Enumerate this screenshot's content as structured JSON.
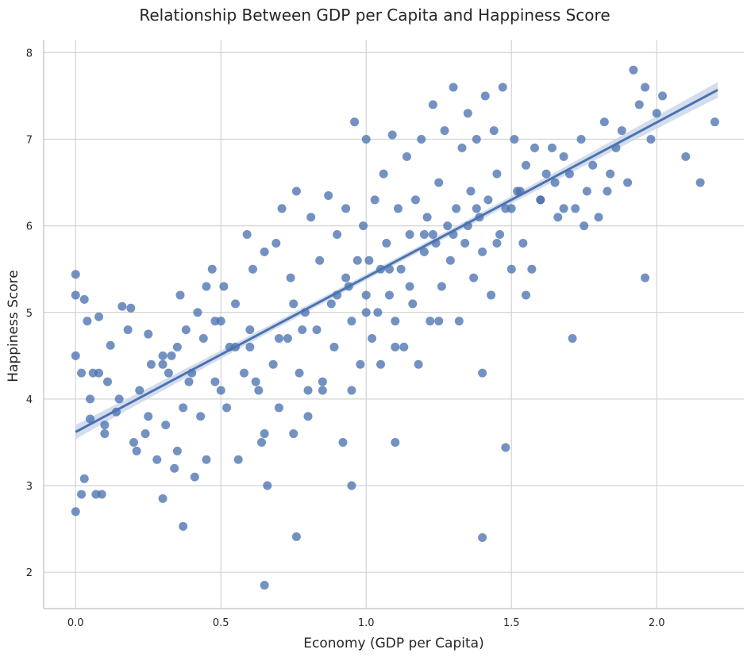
{
  "chart_data": {
    "type": "scatter",
    "title": "Relationship Between GDP per Capita and Happiness Score",
    "xlabel": "Economy (GDP per Capita)",
    "ylabel": "Happiness Score",
    "xlim": [
      -0.11,
      2.3
    ],
    "ylim": [
      1.58,
      8.15
    ],
    "xticks": [
      0.0,
      0.5,
      1.0,
      1.5,
      2.0
    ],
    "xtick_labels": [
      "0.0",
      "0.5",
      "1.0",
      "1.5",
      "2.0"
    ],
    "yticks": [
      2,
      3,
      4,
      5,
      6,
      7,
      8
    ],
    "ytick_labels": [
      "2",
      "3",
      "4",
      "5",
      "6",
      "7",
      "8"
    ],
    "grid": true,
    "point_color": "#4c72b0",
    "regression": {
      "x": [
        0.0,
        2.21
      ],
      "y": [
        3.62,
        7.57
      ],
      "ci_color": "#c8d4e8"
    },
    "series": [
      {
        "x": [
          0.0,
          0.0,
          0.0,
          0.0,
          0.02,
          0.03,
          0.03,
          0.04,
          0.05,
          0.06,
          0.07,
          0.08,
          0.09,
          0.1,
          0.11,
          0.12,
          0.14,
          0.16,
          0.18,
          0.19,
          0.21,
          0.22,
          0.24,
          0.25,
          0.26,
          0.28,
          0.3,
          0.31,
          0.32,
          0.34,
          0.35,
          0.36,
          0.37,
          0.38,
          0.39,
          0.41,
          0.42,
          0.43,
          0.44,
          0.45,
          0.47,
          0.48,
          0.5,
          0.51,
          0.52,
          0.53,
          0.55,
          0.56,
          0.58,
          0.59,
          0.6,
          0.61,
          0.62,
          0.64,
          0.65,
          0.66,
          0.68,
          0.69,
          0.7,
          0.71,
          0.73,
          0.74,
          0.75,
          0.76,
          0.77,
          0.79,
          0.8,
          0.81,
          0.83,
          0.84,
          0.85,
          0.87,
          0.88,
          0.89,
          0.9,
          0.92,
          0.93,
          0.94,
          0.95,
          0.96,
          0.97,
          0.98,
          0.99,
          1.0,
          1.0,
          1.01,
          1.02,
          1.03,
          1.04,
          1.05,
          1.06,
          1.07,
          1.08,
          1.09,
          1.1,
          1.11,
          1.12,
          1.13,
          1.14,
          1.15,
          1.16,
          1.17,
          1.18,
          1.19,
          1.2,
          1.21,
          1.22,
          1.23,
          1.24,
          1.25,
          1.26,
          1.27,
          1.28,
          1.29,
          1.3,
          1.31,
          1.32,
          1.33,
          1.34,
          1.35,
          1.36,
          1.37,
          1.38,
          1.39,
          1.4,
          1.41,
          1.42,
          1.43,
          1.44,
          1.45,
          1.46,
          1.47,
          1.48,
          1.5,
          1.51,
          1.52,
          1.54,
          1.55,
          1.57,
          1.58,
          1.6,
          1.62,
          1.64,
          1.66,
          1.68,
          1.7,
          1.72,
          1.74,
          1.76,
          1.78,
          1.8,
          1.82,
          1.84,
          1.86,
          1.88,
          1.9,
          1.92,
          1.94,
          1.96,
          1.98,
          2.0,
          2.02,
          2.1,
          2.15,
          2.2,
          0.05,
          0.2,
          0.35,
          0.5,
          0.65,
          0.8,
          0.95,
          1.1,
          1.25,
          1.4,
          1.55,
          0.1,
          0.25,
          0.4,
          0.55,
          0.7,
          0.85,
          1.0,
          1.15,
          1.3,
          1.45,
          1.6,
          1.75,
          0.3,
          0.45,
          0.6,
          0.75,
          0.9,
          1.05,
          1.2,
          1.35,
          1.5,
          1.65,
          0.15,
          0.33,
          0.48,
          0.63,
          0.78,
          0.93,
          1.08,
          1.23,
          1.38,
          1.53,
          1.68,
          1.83,
          0.65,
          0.95,
          1.1,
          1.4,
          1.48,
          1.71,
          1.96,
          0.02,
          0.08,
          0.3,
          0.37,
          0.76
        ],
        "y": [
          2.7,
          4.5,
          5.2,
          5.44,
          2.9,
          3.08,
          5.15,
          4.9,
          3.77,
          4.3,
          2.9,
          4.95,
          2.9,
          3.6,
          4.2,
          4.62,
          3.85,
          5.07,
          4.8,
          5.05,
          3.4,
          4.1,
          3.6,
          4.75,
          4.4,
          3.3,
          4.5,
          3.7,
          4.3,
          3.2,
          4.6,
          5.2,
          3.9,
          4.8,
          4.2,
          3.1,
          5.0,
          3.8,
          4.7,
          3.3,
          5.5,
          4.2,
          4.9,
          5.3,
          3.9,
          4.6,
          5.1,
          3.3,
          4.3,
          5.9,
          4.8,
          5.5,
          4.2,
          3.5,
          5.7,
          3.0,
          4.4,
          5.8,
          3.9,
          6.2,
          4.7,
          5.4,
          3.6,
          6.4,
          4.3,
          5.0,
          3.8,
          6.1,
          4.8,
          5.6,
          4.2,
          6.35,
          5.1,
          4.6,
          5.9,
          3.5,
          6.2,
          5.3,
          4.9,
          7.2,
          5.6,
          4.4,
          6.0,
          5.2,
          7.0,
          5.6,
          4.7,
          6.3,
          5.0,
          4.4,
          6.6,
          5.8,
          5.2,
          7.05,
          4.9,
          6.2,
          5.5,
          4.6,
          6.8,
          5.9,
          5.1,
          6.3,
          4.4,
          7.0,
          5.7,
          6.1,
          4.9,
          7.4,
          5.8,
          6.5,
          5.3,
          7.1,
          6.0,
          5.6,
          7.6,
          6.2,
          4.9,
          6.9,
          5.8,
          7.3,
          6.4,
          5.4,
          7.0,
          6.1,
          5.7,
          7.5,
          6.3,
          5.2,
          7.1,
          6.6,
          5.9,
          7.6,
          6.2,
          5.5,
          7.0,
          6.4,
          5.8,
          6.7,
          5.5,
          6.9,
          6.3,
          6.6,
          6.9,
          6.1,
          6.8,
          6.6,
          6.2,
          7.0,
          6.4,
          6.7,
          6.1,
          7.2,
          6.6,
          6.9,
          7.1,
          6.5,
          7.8,
          7.4,
          7.6,
          7.0,
          7.3,
          7.5,
          6.8,
          6.5,
          7.2,
          4.0,
          3.5,
          3.4,
          4.1,
          3.6,
          4.1,
          4.1,
          4.6,
          4.9,
          4.3,
          5.2,
          3.7,
          3.8,
          4.3,
          4.6,
          4.7,
          4.1,
          5.0,
          5.3,
          5.9,
          5.8,
          6.3,
          6.0,
          4.4,
          5.3,
          4.6,
          5.1,
          5.2,
          5.5,
          5.9,
          6.0,
          6.2,
          6.5,
          4.0,
          4.5,
          4.9,
          4.1,
          4.8,
          5.4,
          5.5,
          5.9,
          6.2,
          6.4,
          6.2,
          6.4,
          1.85,
          3.0,
          3.5,
          2.4,
          3.44,
          4.7,
          5.4,
          4.3,
          4.3,
          2.85,
          2.53,
          2.41
        ]
      }
    ]
  }
}
